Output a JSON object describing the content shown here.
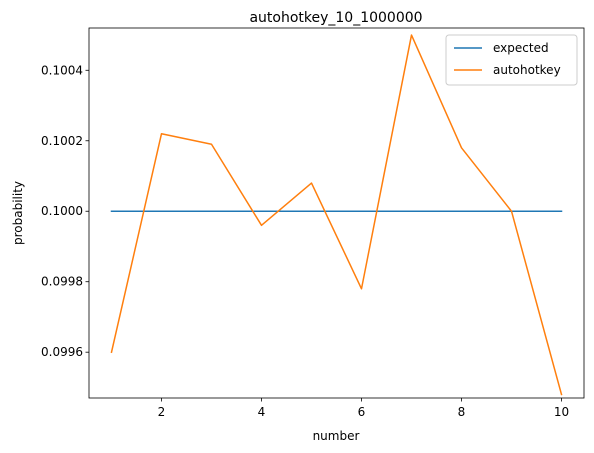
{
  "chart_data": {
    "type": "line",
    "title": "autohotkey_10_1000000",
    "xlabel": "number",
    "ylabel": "probability",
    "xlim": [
      0.55,
      10.45
    ],
    "ylim": [
      0.09947,
      0.10052
    ],
    "xticks": [
      2,
      4,
      6,
      8,
      10
    ],
    "xtick_labels": [
      "2",
      "4",
      "6",
      "8",
      "10"
    ],
    "yticks": [
      0.0996,
      0.0998,
      0.1,
      0.1002,
      0.1004
    ],
    "ytick_labels": [
      "0.0996",
      "0.0998",
      "0.1000",
      "0.1002",
      "0.1004"
    ],
    "grid": false,
    "legend_position": "top-right",
    "series": [
      {
        "name": "expected",
        "color": "#1f77b4",
        "x": [
          1,
          2,
          3,
          4,
          5,
          6,
          7,
          8,
          9,
          10
        ],
        "y": [
          0.1,
          0.1,
          0.1,
          0.1,
          0.1,
          0.1,
          0.1,
          0.1,
          0.1,
          0.1
        ]
      },
      {
        "name": "autohotkey",
        "color": "#ff7f0e",
        "x": [
          1,
          2,
          3,
          4,
          5,
          6,
          7,
          8,
          9,
          10
        ],
        "y": [
          0.0996,
          0.10022,
          0.10019,
          0.09996,
          0.10008,
          0.09978,
          0.1005,
          0.10018,
          0.1,
          0.09948
        ]
      }
    ]
  }
}
